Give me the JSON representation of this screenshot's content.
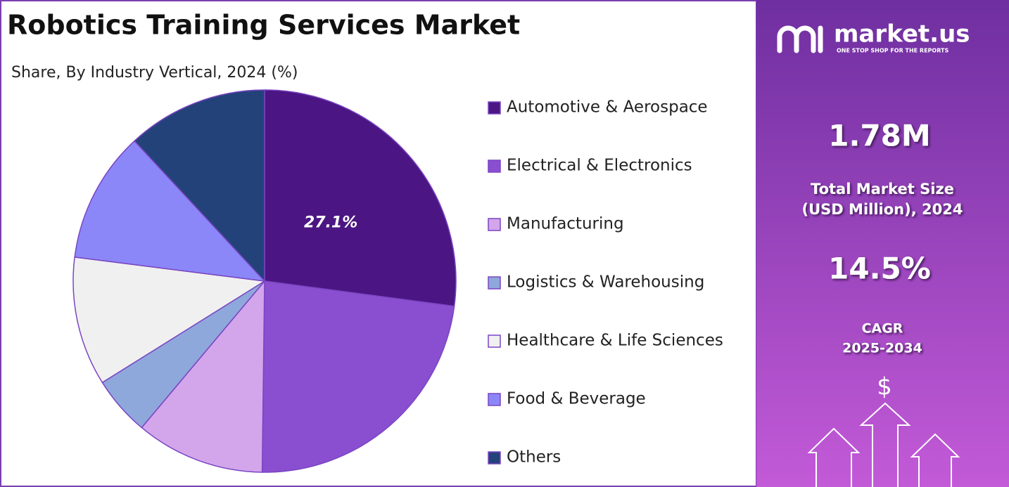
{
  "chart_data": {
    "type": "pie",
    "title": "Robotics Training Services Market",
    "subtitle": "Share, By Industry Vertical, 2024 (%)",
    "categories": [
      "Automotive & Aerospace",
      "Electrical & Electronics",
      "Manufacturing",
      "Logistics & Warehousing",
      "Healthcare & Life Sciences",
      "Food & Beverage",
      "Others"
    ],
    "values": [
      27.1,
      23.1,
      10.9,
      5.0,
      10.9,
      11.1,
      11.9
    ],
    "value_labels": [
      "27.1%",
      null,
      null,
      null,
      null,
      null,
      null
    ],
    "colors": [
      "#4b1683",
      "#8a4fd0",
      "#d3a6ec",
      "#8ea8dc",
      "#f0f0f0",
      "#8b87f8",
      "#24427a"
    ],
    "legend": "right"
  },
  "side_panel": {
    "brand": "market.us",
    "tagline": "ONE STOP SHOP FOR THE REPORTS",
    "market_size": "1.78M",
    "market_size_label": [
      "Total Market Size",
      "(USD Million), 2024"
    ],
    "cagr": "14.5%",
    "cagr_label": [
      "CAGR",
      "2025-2034"
    ],
    "icon_symbol": "$"
  }
}
